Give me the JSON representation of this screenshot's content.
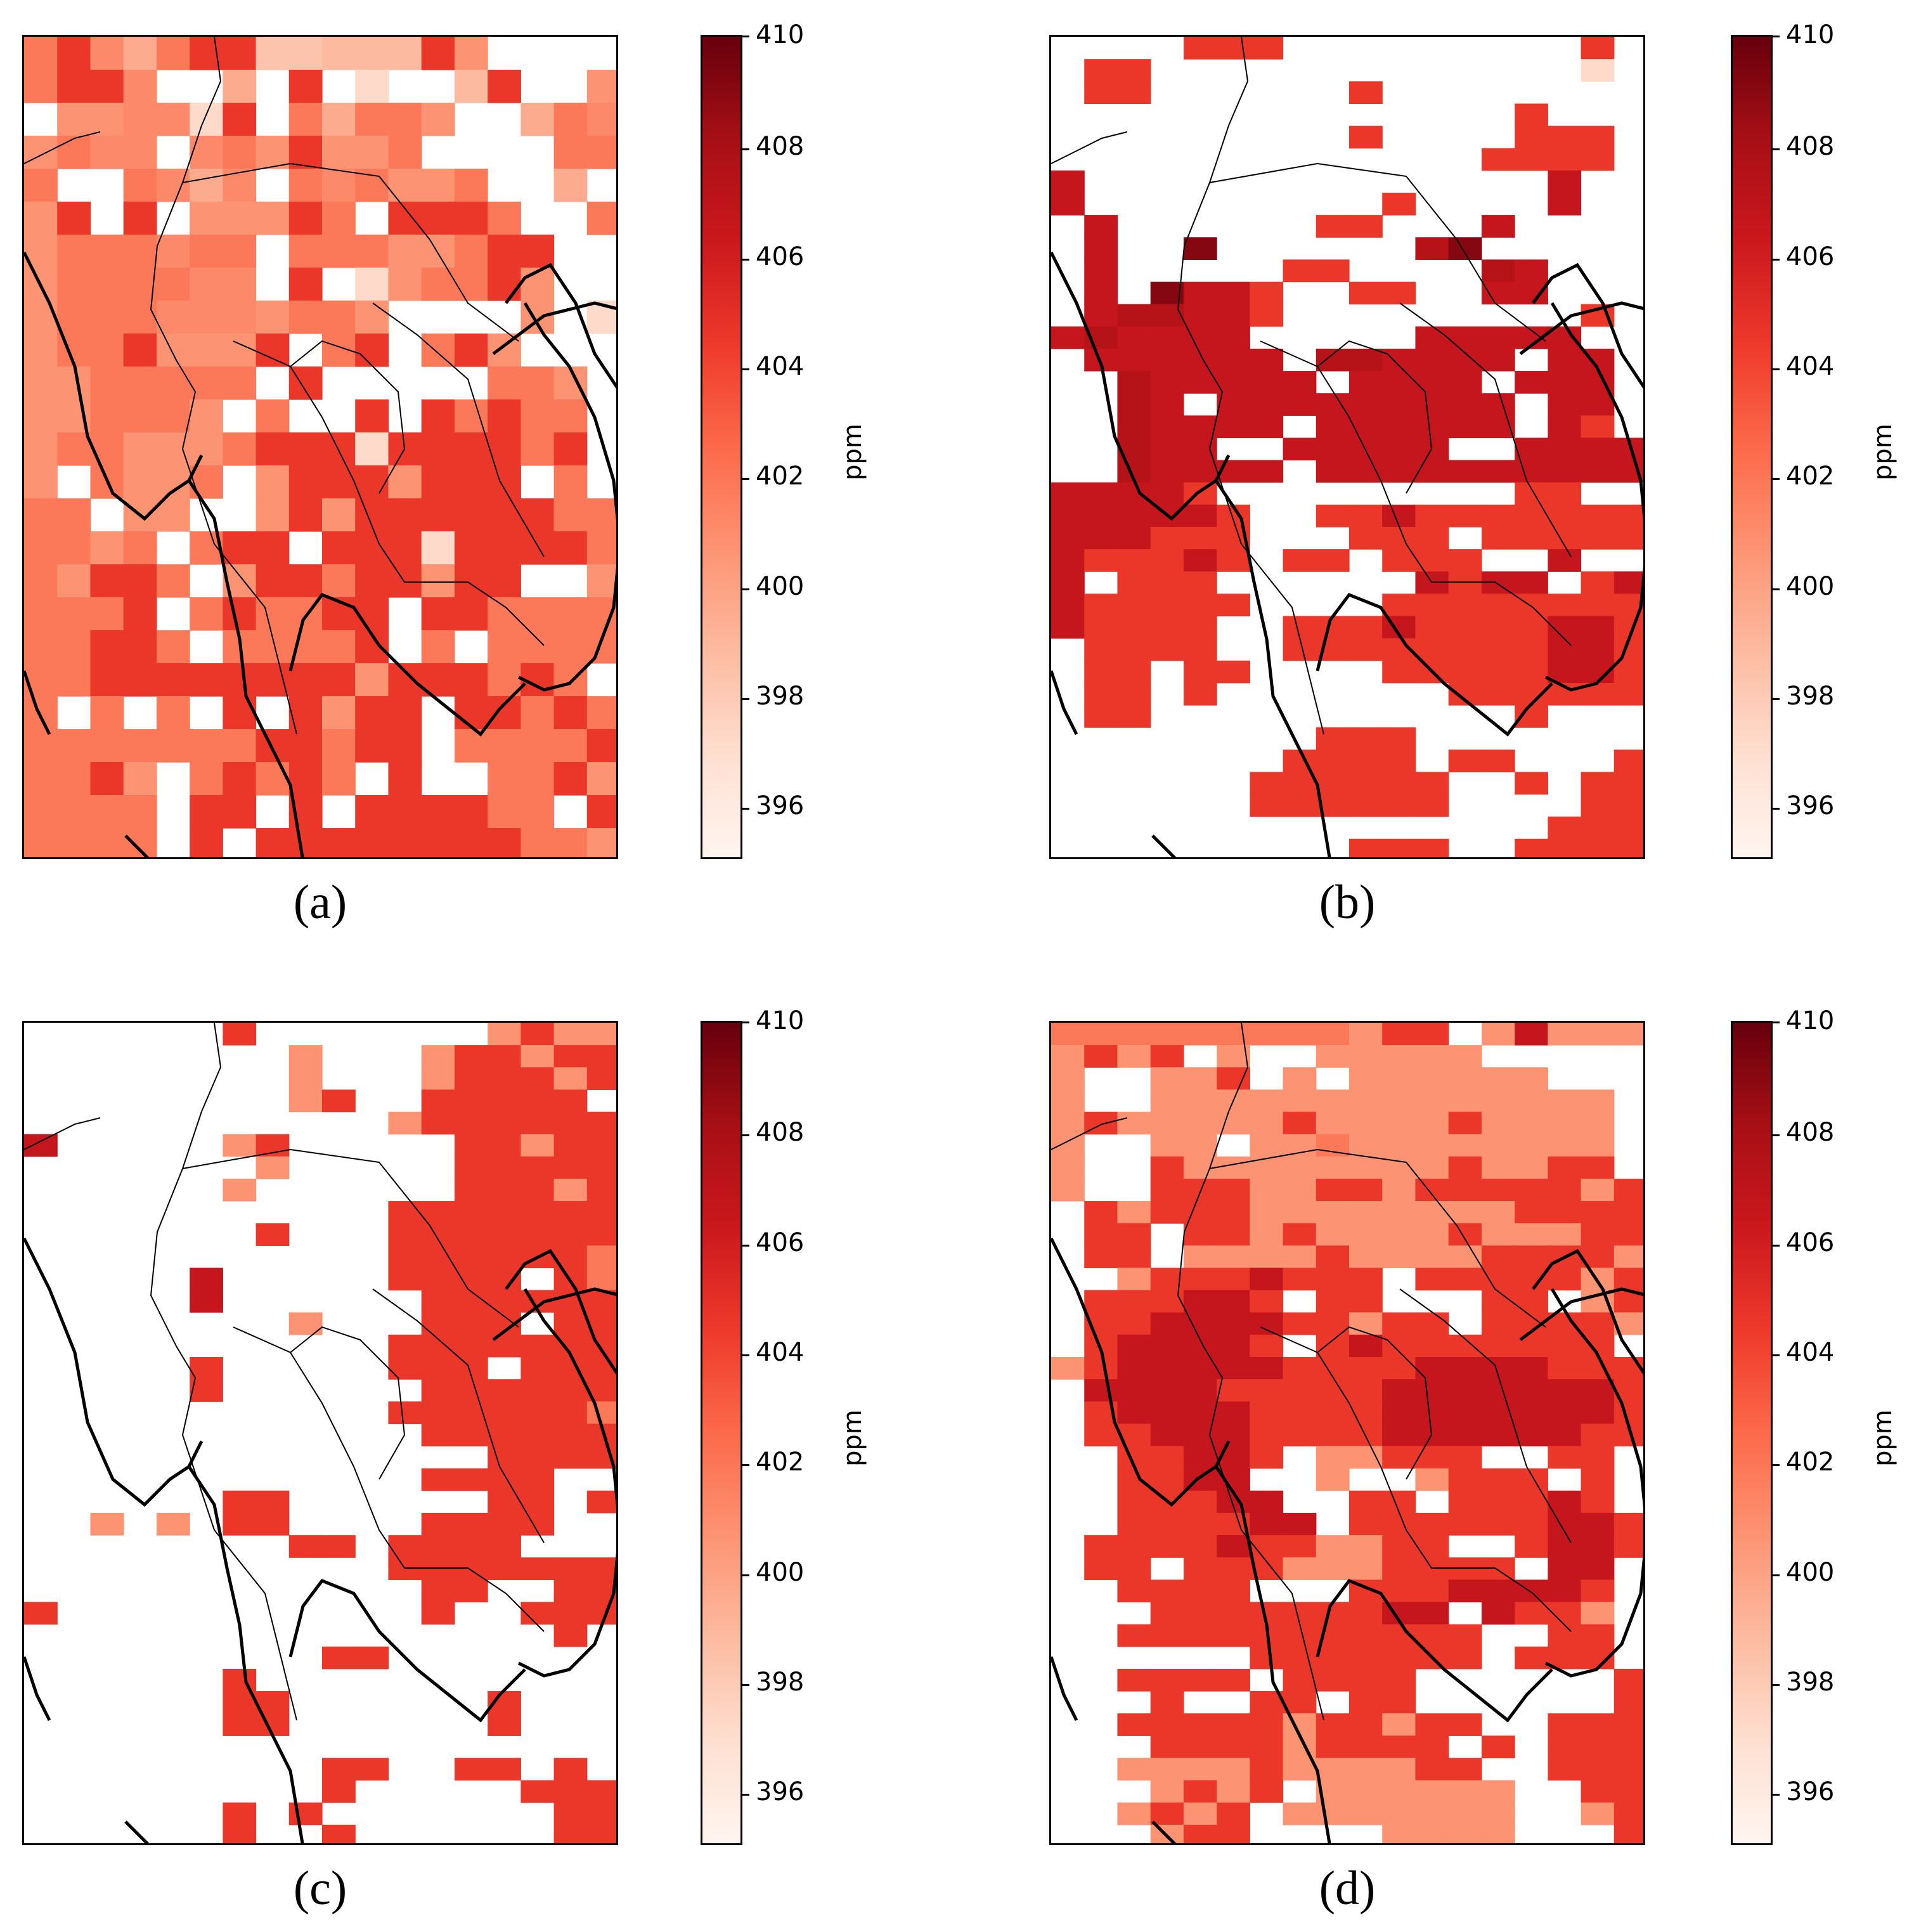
{
  "colormap": {
    "name": "Reds",
    "stops": [
      "#fff5f0",
      "#fee0d2",
      "#fcbba1",
      "#fc9272",
      "#fb6a4a",
      "#ef3b2c",
      "#cb181d",
      "#a50f15",
      "#67000d"
    ]
  },
  "colorbar": {
    "label": "ppm",
    "vmin": 395,
    "vmax": 410,
    "ticks": [
      "396",
      "398",
      "400",
      "402",
      "404",
      "406",
      "408",
      "410"
    ]
  },
  "panels": [
    {
      "label": "(a)",
      "grid": [
        "7r657rr33jjjr8....",
        "7rr6..5.r.9..jr..8",
        ".88669r.75778..576",
        "87664678r887....77",
        "7..7656.767887..5.",
        "8r.r.888r7.rrr7..7",
        "8777677.777887rr..",
        "8777766.r.9877r8..",
        "87776668778....8.9",
        "877r888r.7r.7r8...",
        "8877777.r.....778.",
        "887778.7..r.r7r77.",
        "8778887rrr9rrrr7r.",
        "8.7887.8rrr8rrr.7.",
        "77.88..8r8rrrrrr77",
        "7787.7rr.rrr9rrrr7",
        "78rr7.8rr7rr8rr..8",
        "777r.7r77rr.rr7777",
        "77rr7.7777r.7.7777",
        "77rrrrrrrr8rrr7r7.",
        "7.7.7.r.r8rr.rr7r7",
        "7777777rr7rr.7777r",
        "77r8.7r7r7.r..77r8",
        "7777.rr.r.rrrr77.r",
        "7777.r.rrrrrrrr778"
      ]
    },
    {
      "label": "(b)",
      "grid": [
        "....rrr.........r.",
        ".rr.............9.",
        ".rr......r........",
        "..............r...",
        ".........r....rrr.",
        ".............rrrr.",
        "R..............R..",
        "R.........r....R..",
        ".R......rr...R....",
        ".R..K......aK.....",
        ".R.....rr....aR...",
        ".R.KRRr..rr..RR...",
        ".RaaRRr.........r.",
        "RaRRRR.....RRRRR..",
        ".RRRRRR.aaRRRR.RR.",
        "..aRRRRR.RRRR.RRR.",
        "..aR.RRRRRRRRR.RR.",
        "..aRRRR.RRRRRR.Rr.",
        "..aRR..RRRRR..RRRR",
        "..aRRRR.RRRRRRRRRR",
        "RRRRr.........rr..",
        "RRRRRr..rrRrrrrrrr",
        "RRRrrr...rrr.rrrrr",
        "RrrrRr.rr.rrr..R..",
        "R.rrr......RrRR.rR",
        "Rrrrrr....rrrrrrrr",
        "Rrrrr..rrrRrrrrRRr",
        ".rrrr..rrrrrrrrRRr",
        ".rr.rr....rrrrrRRr",
        ".rr.r.......rrrrrr",
        ".rr...........r...",
        "........rrr.......",
        ".......rrrr.rr...r",
        "......rrrrrr..r.rr",
        "......rrrrrr....rr",
        "...............rrr",
        ".........rrr..rrrr"
      ]
    },
    {
      "label": "(c)",
      "grid": [
        "......r.......8r88",
        "........8...8rr8rr",
        "........8...8rrr8r",
        "........8r..rrrrr.",
        "...........8rrrrrr",
        "R.....8r.....rr8rr",
        ".......8.....rrrrr",
        "......8......rrr8r",
        "...........rrrrrrr",
        ".......r...rrrrrrr",
        "...........rrrrrr7",
        ".....R.....rrrr.r7",
        ".....R......rrrrrr",
        "........8...rrr.rr",
        "...........rrrrrrr",
        ".....r.....rrr.rrr",
        ".....r......rrrrrr",
        "...........rrrrrr7",
        "............rrrrrr",
        "..............rrrr",
        "............rrrr..",
        "......rr......rr.r",
        "..8.8.rr....rrrr..",
        "........rr.rrrr...",
        "...........rrrrrrr",
        "............rr..rr",
        "r...........r..rrr",
        "................r.",
        ".........rr.......",
        "......r...........",
        "......rr......r...",
        "......rr......r...",
        "..................",
        ".........rr..rr.r.",
        ".........r.....rrr",
        "......r.r.......rr",
        "......r..r......rr"
      ]
    },
    {
      "label": "(d)",
      "grid": [
        "7777777778rr.8R888",
        "8r8r.8..88888.....",
        "8..88r.8.888888...",
        "8..88888888888888.",
        "8r88888r8888r8888.",
        "8..88.88788888888.",
        "8..r88888888r88rr.",
        "8..rrr88rr8rrrrr8r",
        ".r8rrr88888888rrrr",
        ".rr.rr8r8888r888rr",
        ".rr.8888r8888rrrr8",
        "..8rrrRrrr.rrrrr8r",
        ".rrrRRr.rr...rr.8r",
        ".rrRRRRrr8rr.rrrr8",
        ".rRRRRr.rRrrrrrrr.",
        "8rRRRRRrrrrRRRRrrr",
        ".RRRRrrrrrRRRRRRRr",
        ".rRRRRrrrrRRRRRRRr",
        ".rrRRRrrrrRRRRRRrr",
        "..rrRRr.88rrr..rr.",
        "..rrRR..8..8rrr.r.",
        "..rrrRR..rr.rrrRr.",
        "..rrrrRR.rrrrrrRRr",
        ".rrrrRrr88rr..rRRr",
        ".rr.rrr888rrrr.RR.",
        "..rrrr...rrrRRRRr.",
        "...rrrrrrrRR.Rrr8.",
        "..rrrrrrrrrrr..rr.",
        "......rrrrrrr.rrr.",
        "..rrrr.rrrr......r",
        "...r..rr.rr......r",
        "..rrrrr8rr8rr..rrr",
        "...rrrr8rrrr.r.rrr",
        "..8888r8888rr..rrr",
        "...8r8r.888888..rr",
        "..8r8r.8888888..8r",
        "...8rr....8888...r"
      ]
    }
  ],
  "cell_value_key": {
    "9": 397.2,
    "8": 400.6,
    "7": 401.8,
    "6": 401.0,
    "5": 399.5,
    "3": 398.3,
    "j": 398.8,
    "r": 404.6,
    "R": 406.6,
    "a": 407.3,
    "K": 409.1
  }
}
